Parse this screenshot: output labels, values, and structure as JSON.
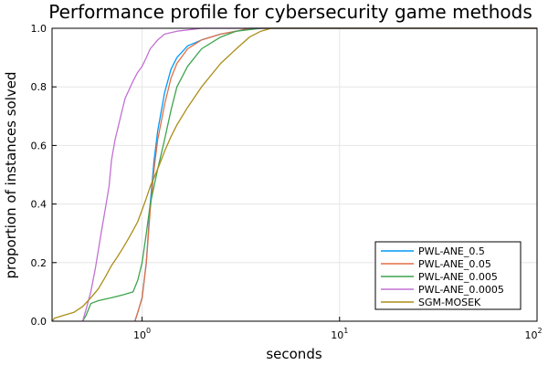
{
  "chart_data": {
    "type": "line",
    "title": "Performance profile for cybersecurity game methods",
    "xlabel": "seconds",
    "ylabel": "proportion of instances solved",
    "x_scale": "log10",
    "xlim": [
      0.35,
      100
    ],
    "ylim": [
      0,
      1
    ],
    "xticks": [
      {
        "value": 1,
        "base": "10",
        "exp": "0"
      },
      {
        "value": 10,
        "base": "10",
        "exp": "1"
      },
      {
        "value": 100,
        "base": "10",
        "exp": "2"
      }
    ],
    "yticks": [
      {
        "value": 0,
        "label": "0.0"
      },
      {
        "value": 0.2,
        "label": "0.2"
      },
      {
        "value": 0.4,
        "label": "0.4"
      },
      {
        "value": 0.6,
        "label": "0.6"
      },
      {
        "value": 0.8,
        "label": "0.8"
      },
      {
        "value": 1.0,
        "label": "1.0"
      }
    ],
    "grid": true,
    "legend_position": "bottom-right",
    "series": [
      {
        "name": "PWL-ANE_0.5",
        "color": "#009af9",
        "points": [
          [
            0.92,
            0
          ],
          [
            0.95,
            0.03
          ],
          [
            1.0,
            0.08
          ],
          [
            1.05,
            0.2
          ],
          [
            1.1,
            0.4
          ],
          [
            1.15,
            0.55
          ],
          [
            1.2,
            0.65
          ],
          [
            1.3,
            0.78
          ],
          [
            1.4,
            0.86
          ],
          [
            1.5,
            0.9
          ],
          [
            1.7,
            0.94
          ],
          [
            2.0,
            0.96
          ],
          [
            2.5,
            0.98
          ],
          [
            3.0,
            0.99
          ],
          [
            3.5,
            1.0
          ],
          [
            100,
            1.0
          ]
        ]
      },
      {
        "name": "PWL-ANE_0.05",
        "color": "#e26f46",
        "points": [
          [
            0.92,
            0
          ],
          [
            0.95,
            0.03
          ],
          [
            1.0,
            0.08
          ],
          [
            1.05,
            0.2
          ],
          [
            1.1,
            0.38
          ],
          [
            1.15,
            0.52
          ],
          [
            1.2,
            0.62
          ],
          [
            1.3,
            0.74
          ],
          [
            1.4,
            0.83
          ],
          [
            1.5,
            0.88
          ],
          [
            1.7,
            0.93
          ],
          [
            2.0,
            0.96
          ],
          [
            2.5,
            0.98
          ],
          [
            3.0,
            0.99
          ],
          [
            3.5,
            1.0
          ],
          [
            100,
            1.0
          ]
        ]
      },
      {
        "name": "PWL-ANE_0.005",
        "color": "#3da44d",
        "points": [
          [
            0.5,
            0
          ],
          [
            0.52,
            0.02
          ],
          [
            0.55,
            0.06
          ],
          [
            0.6,
            0.07
          ],
          [
            0.7,
            0.08
          ],
          [
            0.8,
            0.09
          ],
          [
            0.9,
            0.1
          ],
          [
            0.95,
            0.14
          ],
          [
            1.0,
            0.2
          ],
          [
            1.05,
            0.3
          ],
          [
            1.1,
            0.4
          ],
          [
            1.2,
            0.52
          ],
          [
            1.3,
            0.62
          ],
          [
            1.4,
            0.72
          ],
          [
            1.5,
            0.8
          ],
          [
            1.7,
            0.87
          ],
          [
            2.0,
            0.93
          ],
          [
            2.5,
            0.97
          ],
          [
            3.0,
            0.99
          ],
          [
            4.0,
            1.0
          ],
          [
            100,
            1.0
          ]
        ]
      },
      {
        "name": "PWL-ANE_0.0005",
        "color": "#c271d2",
        "points": [
          [
            0.5,
            0
          ],
          [
            0.52,
            0.04
          ],
          [
            0.55,
            0.1
          ],
          [
            0.58,
            0.18
          ],
          [
            0.62,
            0.3
          ],
          [
            0.65,
            0.38
          ],
          [
            0.68,
            0.46
          ],
          [
            0.7,
            0.55
          ],
          [
            0.73,
            0.62
          ],
          [
            0.78,
            0.7
          ],
          [
            0.82,
            0.76
          ],
          [
            0.9,
            0.82
          ],
          [
            0.95,
            0.85
          ],
          [
            1.0,
            0.87
          ],
          [
            1.05,
            0.9
          ],
          [
            1.1,
            0.93
          ],
          [
            1.2,
            0.96
          ],
          [
            1.3,
            0.98
          ],
          [
            1.5,
            0.99
          ],
          [
            2.0,
            1.0
          ],
          [
            100,
            1.0
          ]
        ]
      },
      {
        "name": "SGM-MOSEK",
        "color": "#ac8d18",
        "points": [
          [
            0.35,
            0
          ],
          [
            0.36,
            0.01
          ],
          [
            0.4,
            0.02
          ],
          [
            0.45,
            0.03
          ],
          [
            0.5,
            0.05
          ],
          [
            0.55,
            0.08
          ],
          [
            0.6,
            0.11
          ],
          [
            0.65,
            0.15
          ],
          [
            0.7,
            0.19
          ],
          [
            0.75,
            0.22
          ],
          [
            0.8,
            0.25
          ],
          [
            0.85,
            0.28
          ],
          [
            0.9,
            0.31
          ],
          [
            0.95,
            0.34
          ],
          [
            1.0,
            0.38
          ],
          [
            1.05,
            0.42
          ],
          [
            1.1,
            0.46
          ],
          [
            1.2,
            0.52
          ],
          [
            1.3,
            0.58
          ],
          [
            1.4,
            0.63
          ],
          [
            1.5,
            0.67
          ],
          [
            1.7,
            0.73
          ],
          [
            2.0,
            0.8
          ],
          [
            2.5,
            0.88
          ],
          [
            3.0,
            0.93
          ],
          [
            3.5,
            0.97
          ],
          [
            4.0,
            0.99
          ],
          [
            4.5,
            1.0
          ],
          [
            100,
            1.0
          ]
        ]
      }
    ]
  }
}
